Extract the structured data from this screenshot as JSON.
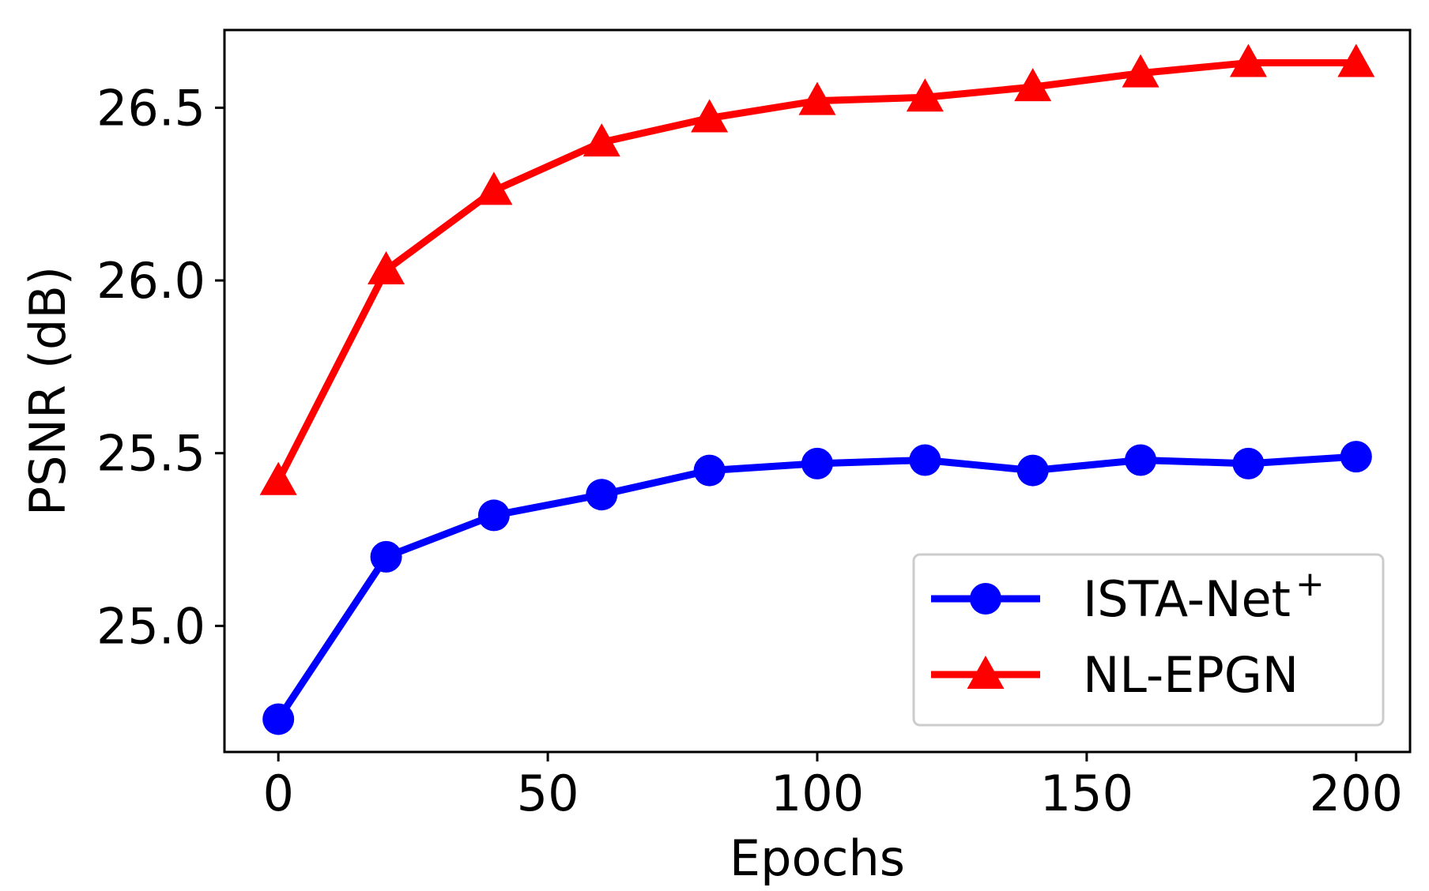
{
  "chart_data": {
    "type": "line",
    "title": "",
    "xlabel": "Epochs",
    "ylabel": "PSNR (dB)",
    "xlim": [
      -10,
      210
    ],
    "ylim": [
      24.635,
      26.725
    ],
    "xticks": [
      0,
      50,
      100,
      150,
      200
    ],
    "xtick_labels": [
      "0",
      "50",
      "100",
      "150",
      "200"
    ],
    "yticks": [
      25.0,
      25.5,
      26.0,
      26.5
    ],
    "ytick_labels": [
      "25.0",
      "25.5",
      "26.0",
      "26.5"
    ],
    "grid": false,
    "legend_position": "lower-right",
    "series": [
      {
        "name": "ISTA-Net",
        "name_superscript": "+",
        "color": "#0000ff",
        "marker": "circle",
        "x": [
          0,
          20,
          40,
          60,
          80,
          100,
          120,
          140,
          160,
          180,
          200
        ],
        "y": [
          24.73,
          25.2,
          25.32,
          25.38,
          25.45,
          25.47,
          25.48,
          25.45,
          25.48,
          25.47,
          25.49
        ]
      },
      {
        "name": "NL-EPGN",
        "name_superscript": "",
        "color": "#ff0000",
        "marker": "triangle",
        "x": [
          0,
          20,
          40,
          60,
          80,
          100,
          120,
          140,
          160,
          180,
          200
        ],
        "y": [
          25.42,
          26.03,
          26.26,
          26.4,
          26.47,
          26.52,
          26.53,
          26.56,
          26.6,
          26.63,
          26.63
        ]
      }
    ]
  }
}
